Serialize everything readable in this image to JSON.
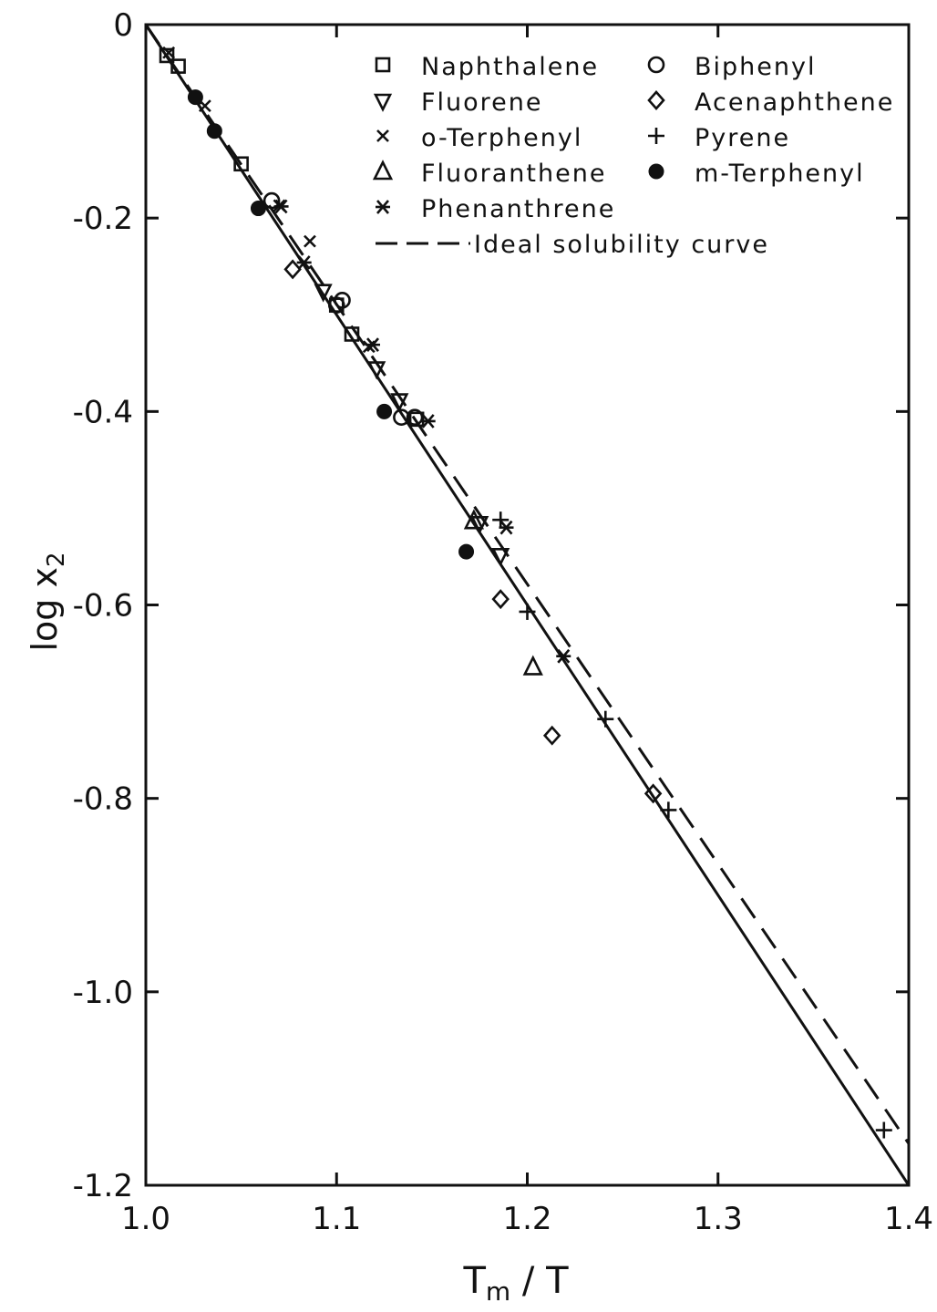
{
  "chart_data": {
    "type": "scatter",
    "xlabel": "T",
    "xlabel_sub": "m",
    "xlabel_suffix": " / T",
    "ylabel": "log x",
    "ylabel_sub": "2",
    "xlim": [
      1.0,
      1.4
    ],
    "ylim": [
      -1.2,
      0
    ],
    "xticks": [
      1.0,
      1.1,
      1.2,
      1.3,
      1.4
    ],
    "xtick_labels": [
      "1.0",
      "1.1",
      "1.2",
      "1.3",
      "1.4"
    ],
    "yticks": [
      0,
      -0.2,
      -0.4,
      -0.6,
      -0.8,
      -1.0,
      -1.2
    ],
    "ytick_labels": [
      "0",
      "-0.2",
      "-0.4",
      "-0.6",
      "-0.8",
      "-1.0",
      "-1.2"
    ],
    "legend_position": "top-right",
    "lines": [
      {
        "style": "solid",
        "points": [
          [
            1.0,
            0.0
          ],
          [
            1.4,
            -1.2
          ]
        ]
      },
      {
        "style": "dashed",
        "name": "Ideal solubility curve",
        "points": [
          [
            1.0,
            0.0
          ],
          [
            1.4,
            -1.157
          ]
        ]
      }
    ],
    "series": [
      {
        "name": "Naphthalene",
        "marker": "square-open",
        "points": [
          [
            1.011,
            -0.032
          ],
          [
            1.017,
            -0.043
          ],
          [
            1.05,
            -0.144
          ],
          [
            1.1,
            -0.29
          ],
          [
            1.108,
            -0.32
          ],
          [
            1.142,
            -0.408
          ]
        ]
      },
      {
        "name": "Biphenyl",
        "marker": "circle-open",
        "points": [
          [
            1.066,
            -0.182
          ],
          [
            1.1,
            -0.29
          ],
          [
            1.103,
            -0.285
          ],
          [
            1.134,
            -0.406
          ],
          [
            1.141,
            -0.406
          ]
        ]
      },
      {
        "name": "Fluorene",
        "marker": "triangle-down-open",
        "points": [
          [
            1.093,
            -0.275
          ],
          [
            1.121,
            -0.355
          ],
          [
            1.133,
            -0.388
          ],
          [
            1.175,
            -0.515
          ],
          [
            1.186,
            -0.548
          ]
        ]
      },
      {
        "name": "Acenaphthene",
        "marker": "diamond-open",
        "points": [
          [
            1.077,
            -0.253
          ],
          [
            1.186,
            -0.594
          ],
          [
            1.213,
            -0.735
          ],
          [
            1.266,
            -0.795
          ]
        ]
      },
      {
        "name": "o-Terphenyl",
        "marker": "x",
        "points": [
          [
            1.012,
            -0.029
          ],
          [
            1.031,
            -0.084
          ],
          [
            1.07,
            -0.187
          ],
          [
            1.086,
            -0.224
          ],
          [
            1.117,
            -0.333
          ]
        ]
      },
      {
        "name": "Pyrene",
        "marker": "plus",
        "points": [
          [
            1.186,
            -0.512
          ],
          [
            1.2,
            -0.607
          ],
          [
            1.241,
            -0.718
          ],
          [
            1.274,
            -0.812
          ],
          [
            1.387,
            -1.143
          ]
        ]
      },
      {
        "name": "Fluoranthene",
        "marker": "triangle-up-open",
        "points": [
          [
            1.172,
            -0.513
          ],
          [
            1.203,
            -0.664
          ]
        ]
      },
      {
        "name": "m-Terphenyl",
        "marker": "circle-filled",
        "points": [
          [
            1.026,
            -0.075
          ],
          [
            1.036,
            -0.11
          ],
          [
            1.059,
            -0.19
          ],
          [
            1.125,
            -0.4
          ],
          [
            1.168,
            -0.545
          ]
        ]
      },
      {
        "name": "Phenanthrene",
        "marker": "asterisk",
        "points": [
          [
            1.071,
            -0.188
          ],
          [
            1.083,
            -0.246
          ],
          [
            1.119,
            -0.331
          ],
          [
            1.148,
            -0.41
          ],
          [
            1.189,
            -0.52
          ],
          [
            1.219,
            -0.653
          ]
        ]
      }
    ],
    "legend": {
      "entries": [
        "Naphthalene",
        "Biphenyl",
        "Fluorene",
        "Acenaphthene",
        "o-Terphenyl",
        "Pyrene",
        "Fluoranthene",
        "m-Terphenyl",
        "Phenanthrene"
      ],
      "line_entry": "Ideal solubility curve"
    }
  }
}
